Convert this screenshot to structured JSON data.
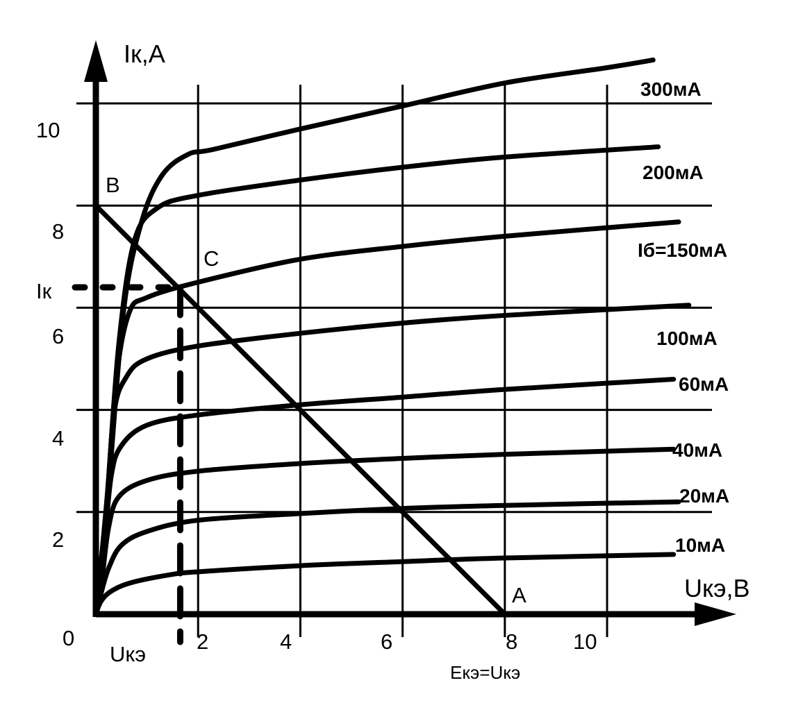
{
  "chart_data": {
    "type": "line",
    "title": "",
    "xlabel": "Uкэ,В",
    "ylabel": "Iк,А",
    "xlim": [
      0,
      12
    ],
    "ylim": [
      0,
      11.5
    ],
    "grid": true,
    "x_ticks": [
      "0",
      "2",
      "4",
      "6",
      "8",
      "10"
    ],
    "y_ticks": [
      "2",
      "4",
      "6",
      "8",
      "10"
    ],
    "series": [
      {
        "name": "10мА",
        "points": [
          [
            0,
            0
          ],
          [
            0.1,
            0.25
          ],
          [
            0.3,
            0.45
          ],
          [
            0.7,
            0.62
          ],
          [
            1.5,
            0.78
          ],
          [
            2,
            0.83
          ],
          [
            4,
            0.95
          ],
          [
            6,
            1.03
          ],
          [
            8,
            1.1
          ],
          [
            11.3,
            1.17
          ]
        ]
      },
      {
        "name": "20мА",
        "points": [
          [
            0,
            0
          ],
          [
            0.1,
            0.4
          ],
          [
            0.25,
            0.9
          ],
          [
            0.5,
            1.35
          ],
          [
            1,
            1.62
          ],
          [
            2,
            1.84
          ],
          [
            4,
            1.97
          ],
          [
            6,
            2.07
          ],
          [
            8,
            2.13
          ],
          [
            11.4,
            2.2
          ]
        ]
      },
      {
        "name": "40мА",
        "points": [
          [
            0,
            0
          ],
          [
            0.12,
            0.7
          ],
          [
            0.25,
            1.7
          ],
          [
            0.45,
            2.3
          ],
          [
            1,
            2.62
          ],
          [
            2,
            2.8
          ],
          [
            4,
            2.95
          ],
          [
            6,
            3.05
          ],
          [
            8,
            3.13
          ],
          [
            11.3,
            3.23
          ]
        ]
      },
      {
        "name": "60мА",
        "points": [
          [
            0,
            0
          ],
          [
            0.15,
            1.2
          ],
          [
            0.3,
            2.7
          ],
          [
            0.5,
            3.3
          ],
          [
            1,
            3.7
          ],
          [
            2,
            3.9
          ],
          [
            4,
            4.1
          ],
          [
            6,
            4.25
          ],
          [
            8,
            4.4
          ],
          [
            11.3,
            4.6
          ]
        ]
      },
      {
        "name": "100мА",
        "points": [
          [
            0,
            0
          ],
          [
            0.18,
            1.6
          ],
          [
            0.35,
            3.9
          ],
          [
            0.6,
            4.65
          ],
          [
            1,
            5.0
          ],
          [
            2,
            5.25
          ],
          [
            4,
            5.5
          ],
          [
            6,
            5.7
          ],
          [
            8,
            5.85
          ],
          [
            11.6,
            6.05
          ]
        ]
      },
      {
        "name": "Iб=150мА",
        "points": [
          [
            0,
            0
          ],
          [
            0.2,
            2
          ],
          [
            0.4,
            4.6
          ],
          [
            0.65,
            5.9
          ],
          [
            1,
            6.2
          ],
          [
            2,
            6.5
          ],
          [
            4,
            6.95
          ],
          [
            6,
            7.2
          ],
          [
            8,
            7.4
          ],
          [
            11.4,
            7.68
          ]
        ]
      },
      {
        "name": "200мА",
        "points": [
          [
            0,
            0
          ],
          [
            0.22,
            2.3
          ],
          [
            0.45,
            5.3
          ],
          [
            0.75,
            7.3
          ],
          [
            1.2,
            7.95
          ],
          [
            2,
            8.2
          ],
          [
            4,
            8.5
          ],
          [
            6,
            8.75
          ],
          [
            8,
            8.95
          ],
          [
            11,
            9.15
          ]
        ]
      },
      {
        "name": "300мА",
        "points": [
          [
            0,
            0
          ],
          [
            0.25,
            2.5
          ],
          [
            0.55,
            6
          ],
          [
            0.9,
            7.7
          ],
          [
            1.3,
            8.6
          ],
          [
            1.8,
            9.0
          ],
          [
            2.3,
            9.1
          ],
          [
            4,
            9.5
          ],
          [
            6,
            9.95
          ],
          [
            8,
            10.4
          ],
          [
            10,
            10.7
          ],
          [
            10.9,
            10.85
          ]
        ]
      }
    ],
    "load_line": {
      "from": [
        0,
        8
      ],
      "to": [
        8,
        0
      ]
    },
    "operating_point": [
      1.65,
      6.4
    ],
    "annotations": {
      "point_b": "B",
      "point_c": "C",
      "point_a": "A",
      "ik_marker": "Iк",
      "uke_marker": "Uкэ",
      "supply_note": "Екэ=Uкэ"
    }
  }
}
